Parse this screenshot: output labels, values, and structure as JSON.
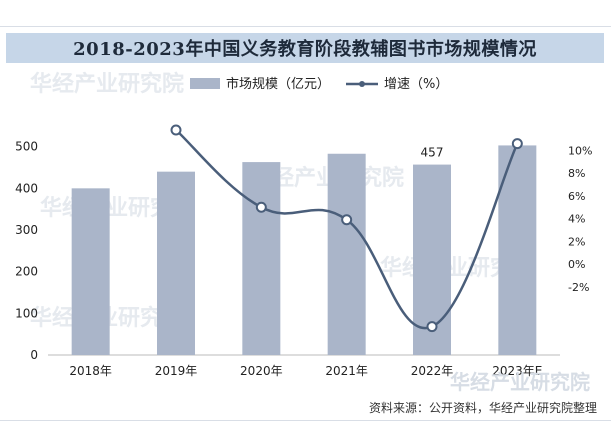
{
  "header": {
    "title": "2018-2023年中国义务教育阶段教辅图书市场规模情况"
  },
  "source_note": "资料来源：公开资料，华经产业研究院整理",
  "watermark": "华经产业研究院",
  "colors": {
    "bar": "#aab5c9",
    "line": "#4a5e7a",
    "title_bg": "#c6d6e8"
  },
  "chart_data": {
    "type": "bar+line",
    "categories": [
      "2018年",
      "2019年",
      "2020年",
      "2021年",
      "2022年",
      "2023年E"
    ],
    "series": [
      {
        "name": "市场规模（亿元）",
        "type": "bar",
        "axis": "left",
        "values": [
          400,
          440,
          463,
          483,
          457,
          503
        ]
      },
      {
        "name": "增速（%）",
        "type": "line",
        "axis": "right",
        "values": [
          null,
          11.8,
          5.0,
          3.9,
          -5.5,
          10.6
        ]
      }
    ],
    "data_labels": [
      {
        "category": "2022年",
        "text": "457"
      }
    ],
    "y_left": {
      "ticks": [
        0,
        100,
        200,
        300,
        400,
        500
      ],
      "ylim": [
        0,
        600
      ]
    },
    "y_right": {
      "ticks": [
        "10%",
        "8%",
        "6%",
        "4%",
        "2%",
        "0%",
        "-2%"
      ],
      "ylim": [
        -8,
        14
      ]
    },
    "legend_position": "top"
  }
}
